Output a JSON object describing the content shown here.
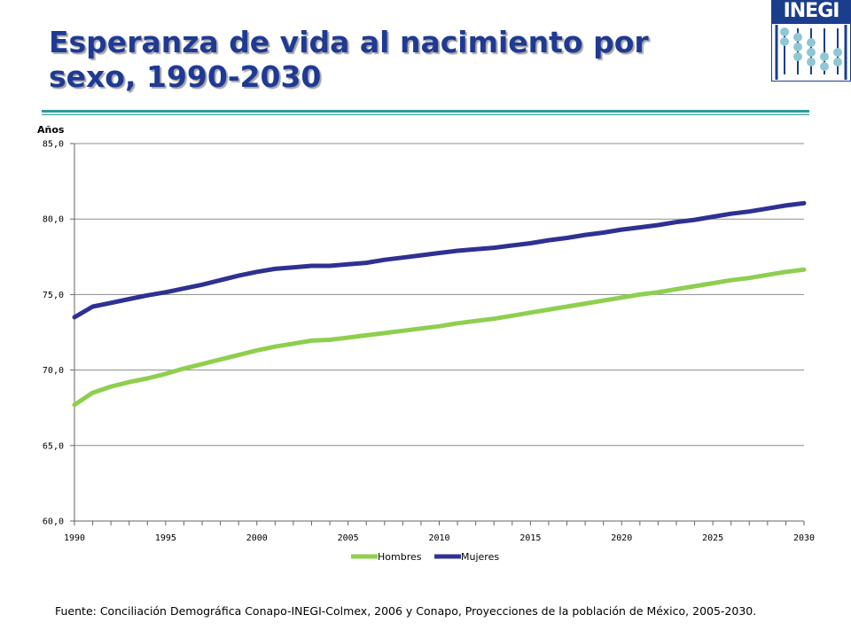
{
  "title": "Esperanza de vida al nacimiento por sexo, 1990-2030",
  "logo": {
    "text": "INEGI"
  },
  "source": "Fuente: Conciliación Demográfica Conapo-INEGI-Colmex, 2006 y Conapo, Proyecciones de la población de México, 2005-2030.",
  "colors": {
    "title": "#1f3a93",
    "rule": "#2e9a9f",
    "hombres": "#8ecf4e",
    "mujeres": "#2e3192",
    "grid": "#8c8c8c"
  },
  "chart_data": {
    "type": "line",
    "title": "",
    "xlabel": "",
    "ylabel": "Años",
    "xlim": [
      1990,
      2030
    ],
    "ylim": [
      60,
      85
    ],
    "x_ticks": [
      "1990",
      "1995",
      "2000",
      "2005",
      "2010",
      "2015",
      "2020",
      "2025",
      "2030"
    ],
    "y_ticks": [
      "60,0",
      "65,0",
      "70,0",
      "75,0",
      "80,0",
      "85,0"
    ],
    "grid": true,
    "legend_position": "bottom",
    "x": [
      1990,
      1991,
      1992,
      1993,
      1994,
      1995,
      1996,
      1997,
      1998,
      1999,
      2000,
      2001,
      2002,
      2003,
      2004,
      2005,
      2006,
      2007,
      2008,
      2009,
      2010,
      2011,
      2012,
      2013,
      2014,
      2015,
      2016,
      2017,
      2018,
      2019,
      2020,
      2021,
      2022,
      2023,
      2024,
      2025,
      2026,
      2027,
      2028,
      2029,
      2030
    ],
    "series": [
      {
        "name": "Hombres",
        "color": "#8ecf4e",
        "values": [
          67.7,
          68.5,
          68.9,
          69.2,
          69.45,
          69.75,
          70.1,
          70.4,
          70.7,
          71.0,
          71.3,
          71.55,
          71.75,
          71.95,
          72.0,
          72.15,
          72.3,
          72.45,
          72.6,
          72.75,
          72.9,
          73.1,
          73.25,
          73.4,
          73.6,
          73.8,
          74.0,
          74.2,
          74.4,
          74.6,
          74.8,
          75.0,
          75.15,
          75.35,
          75.55,
          75.75,
          75.95,
          76.1,
          76.3,
          76.5,
          76.65
        ]
      },
      {
        "name": "Mujeres",
        "color": "#2e3192",
        "values": [
          73.5,
          74.2,
          74.45,
          74.7,
          74.95,
          75.15,
          75.4,
          75.65,
          75.95,
          76.25,
          76.5,
          76.7,
          76.8,
          76.9,
          76.9,
          77.0,
          77.1,
          77.3,
          77.45,
          77.6,
          77.75,
          77.9,
          78.0,
          78.1,
          78.25,
          78.4,
          78.6,
          78.75,
          78.95,
          79.1,
          79.3,
          79.45,
          79.6,
          79.8,
          79.95,
          80.15,
          80.35,
          80.5,
          80.7,
          80.9,
          81.05
        ]
      }
    ]
  }
}
